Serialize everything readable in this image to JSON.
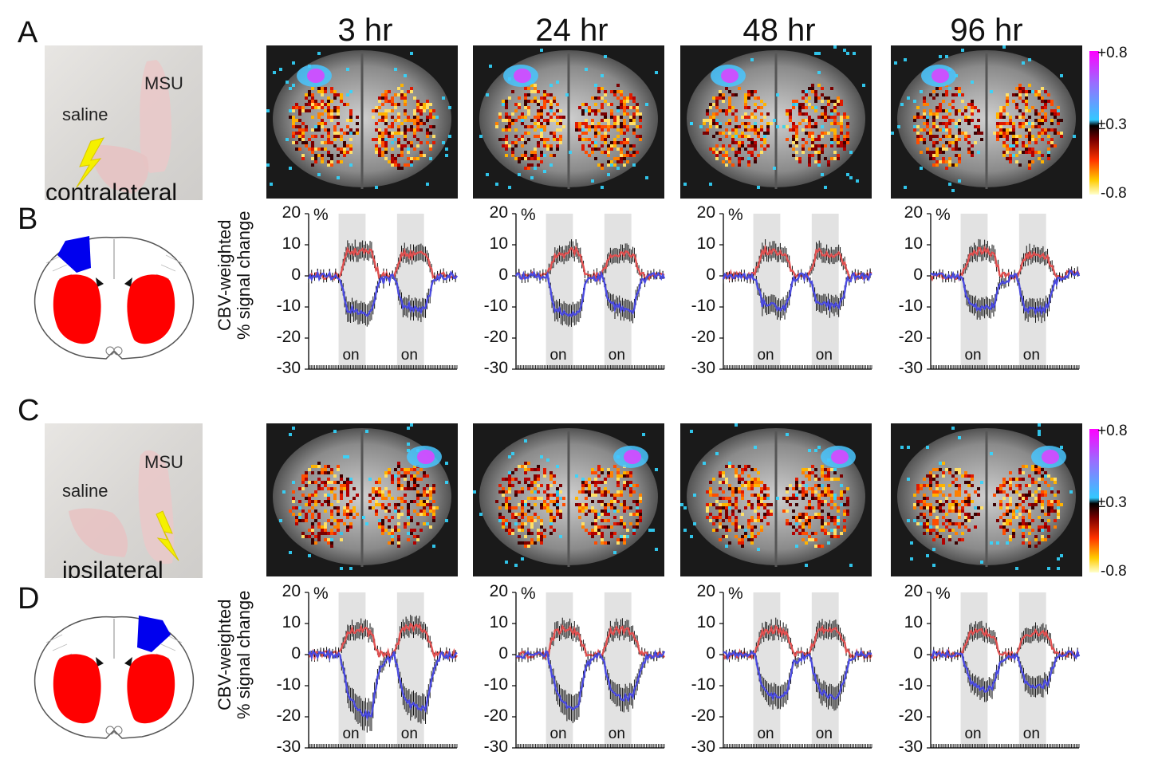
{
  "figure": {
    "panel_letters": [
      "A",
      "B",
      "C",
      "D"
    ],
    "time_points": [
      "3 hr",
      "24 hr",
      "48 hr",
      "96 hr"
    ],
    "photo_labels": {
      "saline": "saline",
      "msu": "MSU",
      "contralateral": "contralateral",
      "ipsilateral": "ipsilateral"
    },
    "colorbar_ticks": [
      "+0.8",
      "±0.3",
      "-0.8"
    ],
    "y_axis_label_line1": "CBV-weighted",
    "y_axis_label_line2": "% signal change",
    "percent_symbol": "%",
    "stim_label": "on",
    "colors": {
      "roi_motor": "#0000ee",
      "roi_striatum": "#ff0000",
      "red_trace": "#e05050",
      "blue_trace": "#4a4ae0",
      "stim_block": "#e2e2e2"
    }
  },
  "chart_data": [
    {
      "type": "line",
      "panel": "B",
      "time": "3 hr",
      "title": "3 hr",
      "ylim": [
        -30,
        20
      ],
      "yticks": [
        20,
        10,
        0,
        -10,
        -20,
        -30
      ],
      "ylabel": "CBV-weighted % signal change",
      "stim_blocks": [
        "on",
        "on"
      ],
      "series": [
        {
          "name": "striatum (red)",
          "values": [
            0,
            0,
            0,
            0,
            0,
            8,
            8,
            8,
            8,
            0,
            0,
            0,
            7,
            7,
            7,
            7,
            0,
            0,
            0,
            0
          ]
        },
        {
          "name": "motor cortex (blue)",
          "values": [
            0,
            0,
            0,
            0,
            0,
            -11,
            -11,
            -12,
            -12,
            -2,
            -1,
            0,
            -10,
            -10,
            -11,
            -10,
            -2,
            0,
            0,
            0
          ]
        }
      ]
    },
    {
      "type": "line",
      "panel": "B",
      "time": "24 hr",
      "title": "24 hr",
      "ylim": [
        -30,
        20
      ],
      "yticks": [
        20,
        10,
        0,
        -10,
        -20,
        -30
      ],
      "stim_blocks": [
        "on",
        "on"
      ],
      "series": [
        {
          "name": "striatum (red)",
          "values": [
            0,
            0,
            0,
            0,
            0,
            7,
            7,
            8,
            8,
            0,
            0,
            0,
            7,
            7,
            7,
            7,
            0,
            0,
            0,
            0
          ]
        },
        {
          "name": "motor cortex (blue)",
          "values": [
            0,
            0,
            0,
            0,
            0,
            -11,
            -12,
            -12,
            -12,
            -2,
            -1,
            0,
            -9,
            -10,
            -11,
            -11,
            -2,
            0,
            0,
            0
          ]
        }
      ]
    },
    {
      "type": "line",
      "panel": "B",
      "time": "48 hr",
      "title": "48 hr",
      "ylim": [
        -30,
        20
      ],
      "yticks": [
        20,
        10,
        0,
        -10,
        -20,
        -30
      ],
      "stim_blocks": [
        "on",
        "on"
      ],
      "series": [
        {
          "name": "striatum (red)",
          "values": [
            0,
            0,
            0,
            0,
            0,
            8,
            8,
            7,
            7,
            0,
            0,
            0,
            8,
            7,
            7,
            7,
            0,
            0,
            0,
            0
          ]
        },
        {
          "name": "motor cortex (blue)",
          "values": [
            0,
            0,
            0,
            0,
            0,
            -9,
            -9,
            -10,
            -10,
            -1,
            0,
            0,
            -9,
            -9,
            -10,
            -9,
            -1,
            0,
            0,
            0
          ]
        }
      ]
    },
    {
      "type": "line",
      "panel": "B",
      "time": "96 hr",
      "title": "96 hr",
      "ylim": [
        -30,
        20
      ],
      "yticks": [
        20,
        10,
        0,
        -10,
        -20,
        -30
      ],
      "stim_blocks": [
        "on",
        "on"
      ],
      "series": [
        {
          "name": "striatum (red)",
          "values": [
            0,
            0,
            0,
            0,
            0,
            7,
            8,
            8,
            7,
            0,
            0,
            0,
            6,
            7,
            7,
            6,
            0,
            0,
            1,
            1
          ]
        },
        {
          "name": "motor cortex (blue)",
          "values": [
            0,
            0,
            0,
            0,
            0,
            -10,
            -10,
            -10,
            -10,
            -2,
            -1,
            0,
            -10,
            -11,
            -11,
            -10,
            -2,
            0,
            1,
            1
          ]
        }
      ]
    },
    {
      "type": "line",
      "panel": "D",
      "time": "3 hr",
      "title": "3 hr",
      "ylim": [
        -30,
        20
      ],
      "yticks": [
        20,
        10,
        0,
        -10,
        -20,
        -30
      ],
      "stim_blocks": [
        "on",
        "on"
      ],
      "series": [
        {
          "name": "striatum (red)",
          "values": [
            0,
            0,
            0,
            0,
            0,
            7,
            8,
            8,
            7,
            0,
            0,
            0,
            8,
            9,
            9,
            8,
            0,
            0,
            0,
            0
          ]
        },
        {
          "name": "motor cortex (blue)",
          "values": [
            0,
            0,
            0,
            0,
            0,
            -12,
            -17,
            -19,
            -20,
            -5,
            -2,
            0,
            -12,
            -16,
            -17,
            -17,
            -5,
            0,
            0,
            0
          ]
        }
      ]
    },
    {
      "type": "line",
      "panel": "D",
      "time": "24 hr",
      "title": "24 hr",
      "ylim": [
        -30,
        20
      ],
      "yticks": [
        20,
        10,
        0,
        -10,
        -20,
        -30
      ],
      "stim_blocks": [
        "on",
        "on"
      ],
      "series": [
        {
          "name": "striatum (red)",
          "values": [
            0,
            0,
            0,
            0,
            0,
            7,
            8,
            8,
            7,
            0,
            0,
            0,
            7,
            8,
            8,
            7,
            0,
            0,
            0,
            0
          ]
        },
        {
          "name": "motor cortex (blue)",
          "values": [
            0,
            0,
            0,
            0,
            0,
            -10,
            -15,
            -17,
            -16,
            -4,
            -1,
            0,
            -10,
            -13,
            -14,
            -13,
            -4,
            0,
            0,
            0
          ]
        }
      ]
    },
    {
      "type": "line",
      "panel": "D",
      "time": "48 hr",
      "title": "48 hr",
      "ylim": [
        -30,
        20
      ],
      "yticks": [
        20,
        10,
        0,
        -10,
        -20,
        -30
      ],
      "stim_blocks": [
        "on",
        "on"
      ],
      "series": [
        {
          "name": "striatum (red)",
          "values": [
            0,
            0,
            0,
            0,
            0,
            7,
            8,
            8,
            7,
            0,
            0,
            0,
            7,
            8,
            8,
            7,
            0,
            0,
            0,
            0
          ]
        },
        {
          "name": "motor cortex (blue)",
          "values": [
            0,
            0,
            0,
            0,
            0,
            -10,
            -13,
            -14,
            -13,
            -3,
            -1,
            0,
            -10,
            -13,
            -14,
            -12,
            -3,
            0,
            0,
            0
          ]
        }
      ]
    },
    {
      "type": "line",
      "panel": "D",
      "time": "96 hr",
      "title": "96 hr",
      "ylim": [
        -30,
        20
      ],
      "yticks": [
        20,
        10,
        0,
        -10,
        -20,
        -30
      ],
      "stim_blocks": [
        "on",
        "on"
      ],
      "series": [
        {
          "name": "striatum (red)",
          "values": [
            0,
            0,
            0,
            0,
            0,
            7,
            8,
            7,
            6,
            0,
            0,
            0,
            6,
            7,
            7,
            6,
            0,
            0,
            0,
            0
          ]
        },
        {
          "name": "motor cortex (blue)",
          "values": [
            0,
            0,
            0,
            0,
            0,
            -8,
            -10,
            -11,
            -10,
            -2,
            -1,
            0,
            -8,
            -10,
            -10,
            -9,
            -2,
            0,
            0,
            0
          ]
        }
      ]
    }
  ]
}
